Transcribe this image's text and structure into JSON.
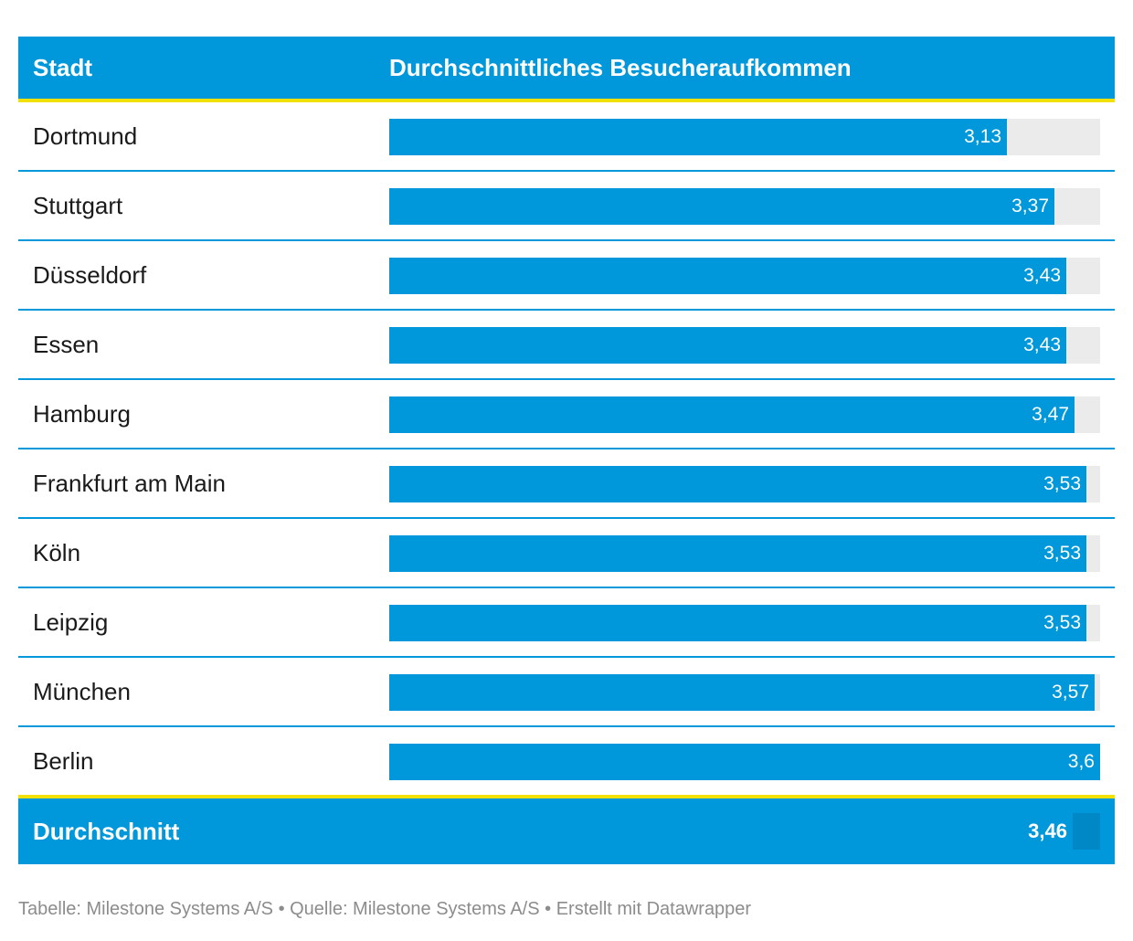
{
  "table": {
    "header": {
      "col1": "Stadt",
      "col2": "Durchschnittliches Besucheraufkommen"
    },
    "footer": {
      "label": "Durchschnitt",
      "value": "3,46"
    }
  },
  "chart_data": {
    "type": "bar",
    "categories": [
      "Dortmund",
      "Stuttgart",
      "Düsseldorf",
      "Essen",
      "Hamburg",
      "Frankfurt am Main",
      "Köln",
      "Leipzig",
      "München",
      "Berlin"
    ],
    "values": [
      3.13,
      3.37,
      3.43,
      3.43,
      3.47,
      3.53,
      3.53,
      3.53,
      3.57,
      3.6
    ],
    "value_labels": [
      "3,13",
      "3,37",
      "3,43",
      "3,43",
      "3,47",
      "3,53",
      "3,53",
      "3,53",
      "3,57",
      "3,6"
    ],
    "max": 3.6,
    "average": 3.46
  },
  "source_note": "Tabelle: Milestone Systems A/S • Quelle: Milestone Systems A/S • Erstellt mit Datawrapper",
  "colors": {
    "bar": "#0098da",
    "track": "#ebebeb",
    "accent": "#f2e100"
  }
}
